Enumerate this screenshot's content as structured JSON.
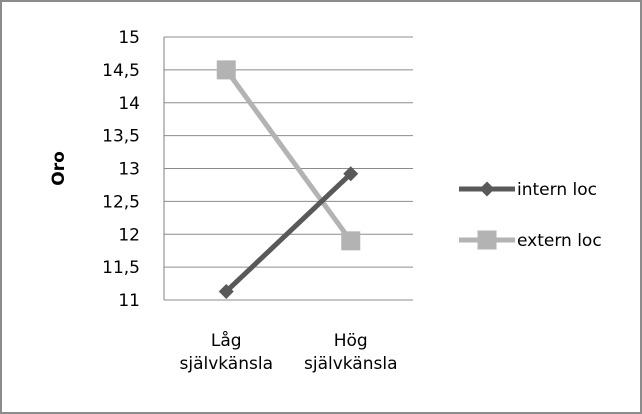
{
  "chart_data": {
    "type": "line",
    "categories": [
      [
        "Låg",
        "självkänsla"
      ],
      [
        "Hög",
        "självkänsla"
      ]
    ],
    "ylabel": "Oro",
    "xlabel": "",
    "ylim": [
      11,
      15
    ],
    "ytick_step": 0.5,
    "yticks": [
      "11",
      "11,5",
      "12",
      "12,5",
      "13",
      "13,5",
      "14",
      "14,5",
      "15"
    ],
    "grid": true,
    "legend_position": "right",
    "series": [
      {
        "name": "intern loc",
        "values": [
          11.13,
          12.92
        ],
        "color": "#595959",
        "marker": "diamond"
      },
      {
        "name": "extern loc",
        "values": [
          14.5,
          11.9
        ],
        "color": "#b3b3b3",
        "marker": "square"
      }
    ]
  }
}
